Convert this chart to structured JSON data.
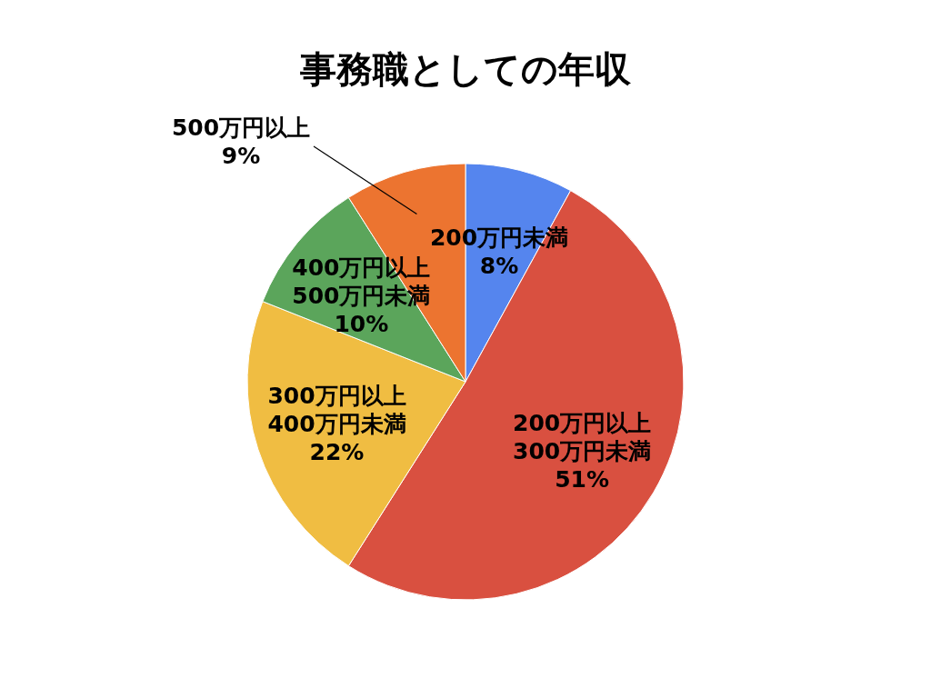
{
  "chart_data": {
    "type": "pie",
    "title": "事務職としての年収",
    "categories": [
      "200万円未満",
      "200万円以上\n300万円未満",
      "300万円以上\n400万円未満",
      "400万円以上\n500万円未満",
      "500万円以上"
    ],
    "values": [
      8,
      51,
      22,
      10,
      9
    ],
    "value_labels": [
      "8%",
      "51%",
      "22%",
      "10%",
      "9%"
    ],
    "colors": [
      "#5585ee",
      "#d95040",
      "#f0bd42",
      "#5ba55b",
      "#ec7430"
    ],
    "legend": false
  }
}
